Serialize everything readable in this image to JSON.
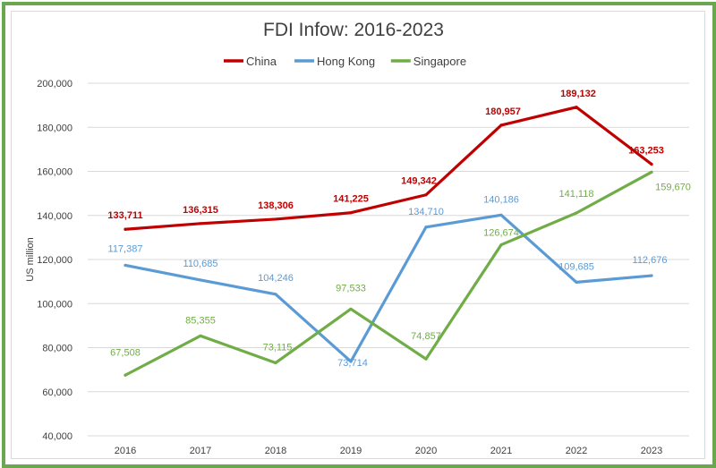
{
  "chart_data": {
    "type": "line",
    "title": "FDI Infow: 2016-2023",
    "ylabel": "US million",
    "xlabel": "",
    "categories": [
      "2016",
      "2017",
      "2018",
      "2019",
      "2020",
      "2021",
      "2022",
      "2023"
    ],
    "ylim": [
      40000,
      200000
    ],
    "yticks": [
      40000,
      60000,
      80000,
      100000,
      120000,
      140000,
      160000,
      180000,
      200000
    ],
    "ytick_labels": [
      "40,000",
      "60,000",
      "80,000",
      "100,000",
      "120,000",
      "140,000",
      "160,000",
      "180,000",
      "200,000"
    ],
    "grid": true,
    "legend_position": "top",
    "series": [
      {
        "name": "China",
        "color": "#c00000",
        "values": [
          133711,
          136315,
          138306,
          141225,
          149342,
          180957,
          189132,
          163253
        ],
        "labels": [
          "133,711",
          "136,315",
          "138,306",
          "141,225",
          "149,342",
          "180,957",
          "189,132",
          "163,253"
        ]
      },
      {
        "name": "Hong Kong",
        "color": "#5b9bd5",
        "values": [
          117387,
          110685,
          104246,
          73714,
          134710,
          140186,
          109685,
          112676
        ],
        "labels": [
          "117,387",
          "110,685",
          "104,246",
          "73,714",
          "134,710",
          "140,186",
          "109,685",
          "112,676"
        ]
      },
      {
        "name": "Singapore",
        "color": "#70ad47",
        "values": [
          67508,
          85355,
          73115,
          97533,
          74857,
          126674,
          141118,
          159670
        ],
        "labels": [
          "67,508",
          "85,355",
          "73,115",
          "97,533",
          "74,857",
          "126,674",
          "141,118",
          "159,670"
        ]
      }
    ]
  }
}
